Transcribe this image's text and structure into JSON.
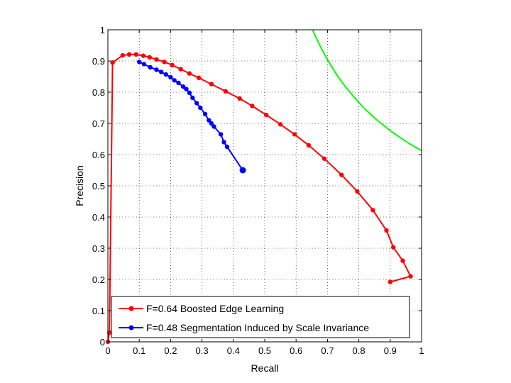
{
  "chart_data": {
    "type": "line",
    "title": "",
    "xlabel": "Recall",
    "ylabel": "Precision",
    "xlim": [
      0,
      1
    ],
    "ylim": [
      0,
      1
    ],
    "xticks": [
      "0",
      "0.1",
      "0.2",
      "0.3",
      "0.4",
      "0.5",
      "0.6",
      "0.7",
      "0.8",
      "0.9",
      "1"
    ],
    "yticks": [
      "0",
      "0.1",
      "0.2",
      "0.3",
      "0.4",
      "0.5",
      "0.6",
      "0.7",
      "0.8",
      "0.9",
      "1"
    ],
    "grid": true,
    "legend_position": "bottom-left",
    "series": [
      {
        "name": "F=0.64 Boosted Edge Learning",
        "color": "#ff0000",
        "marker": "dot",
        "x": [
          0.0,
          0.005,
          0.015,
          0.047,
          0.068,
          0.09,
          0.113,
          0.133,
          0.155,
          0.18,
          0.205,
          0.232,
          0.26,
          0.29,
          0.33,
          0.375,
          0.42,
          0.46,
          0.505,
          0.55,
          0.595,
          0.64,
          0.69,
          0.745,
          0.795,
          0.845,
          0.888,
          0.91,
          0.94,
          0.965,
          0.9
        ],
        "y": [
          0.0,
          0.03,
          0.895,
          0.918,
          0.921,
          0.921,
          0.917,
          0.912,
          0.905,
          0.897,
          0.887,
          0.874,
          0.86,
          0.846,
          0.826,
          0.803,
          0.78,
          0.756,
          0.727,
          0.697,
          0.665,
          0.63,
          0.587,
          0.535,
          0.482,
          0.422,
          0.357,
          0.303,
          0.26,
          0.21,
          0.192
        ]
      },
      {
        "name": "F=0.48 Segmentation Induced by Scale Invariance",
        "color": "#0000ff",
        "marker": "dot",
        "x": [
          0.1,
          0.115,
          0.135,
          0.155,
          0.17,
          0.185,
          0.2,
          0.212,
          0.225,
          0.24,
          0.25,
          0.26,
          0.27,
          0.283,
          0.295,
          0.31,
          0.322,
          0.33,
          0.338,
          0.36,
          0.37,
          0.38,
          0.43
        ],
        "y": [
          0.897,
          0.89,
          0.88,
          0.872,
          0.865,
          0.857,
          0.848,
          0.838,
          0.83,
          0.818,
          0.81,
          0.798,
          0.782,
          0.765,
          0.75,
          0.73,
          0.71,
          0.7,
          0.69,
          0.665,
          0.64,
          0.625,
          0.55
        ]
      },
      {
        "name": "",
        "color": "#00ff00",
        "marker": "none",
        "x": [
          0.653,
          0.66,
          0.68,
          0.7,
          0.72,
          0.74,
          0.76,
          0.78,
          0.8,
          0.82,
          0.84,
          0.86,
          0.88,
          0.9,
          0.92,
          0.94,
          0.96,
          0.98,
          1.0
        ],
        "y": [
          1.0,
          0.983,
          0.941,
          0.904,
          0.871,
          0.841,
          0.814,
          0.79,
          0.767,
          0.746,
          0.727,
          0.709,
          0.693,
          0.677,
          0.663,
          0.649,
          0.636,
          0.624,
          0.613
        ]
      }
    ]
  }
}
